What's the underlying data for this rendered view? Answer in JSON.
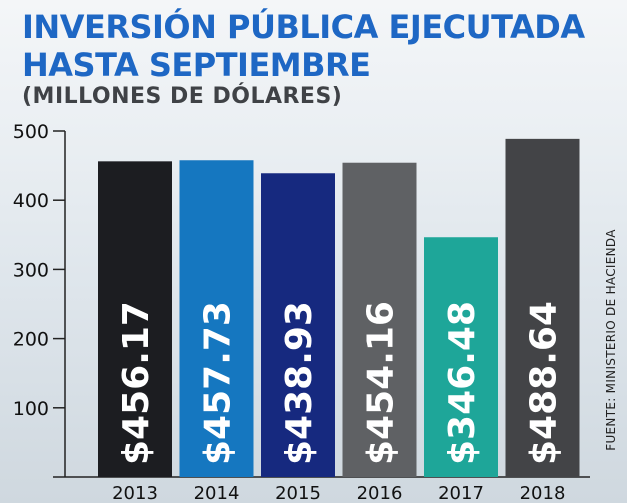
{
  "title": "INVERSIÓN PÚBLICA EJECUTADA\nHASTA SEPTIEMBRE",
  "subtitle": "(MILLONES DE DÓLARES)",
  "source": "FUENTE: MINISTERIO DE HACIENDA",
  "colors": {
    "title": "#1e67c4",
    "bars": [
      "#1c1d21",
      "#1577c0",
      "#16297f",
      "#5f6164",
      "#1ea699",
      "#434447"
    ]
  },
  "chart_data": {
    "type": "bar",
    "categories": [
      "2013",
      "2014",
      "2015",
      "2016",
      "2017",
      "2018"
    ],
    "values": [
      456.17,
      457.73,
      438.93,
      454.16,
      346.48,
      488.64
    ],
    "data_labels": [
      "$456.17",
      "$457.73",
      "$438.93",
      "$454.16",
      "$346.48",
      "$488.64"
    ],
    "ylim": [
      0,
      500
    ],
    "yticks": [
      0,
      100,
      200,
      300,
      400,
      500
    ],
    "ytick_labels": [
      "",
      "100",
      "200",
      "300",
      "400",
      "500"
    ],
    "title": "INVERSIÓN PÚBLICA EJECUTADA HASTA SEPTIEMBRE",
    "ylabel": "(MILLONES DE DÓLARES)",
    "xlabel": "",
    "grid": false
  }
}
